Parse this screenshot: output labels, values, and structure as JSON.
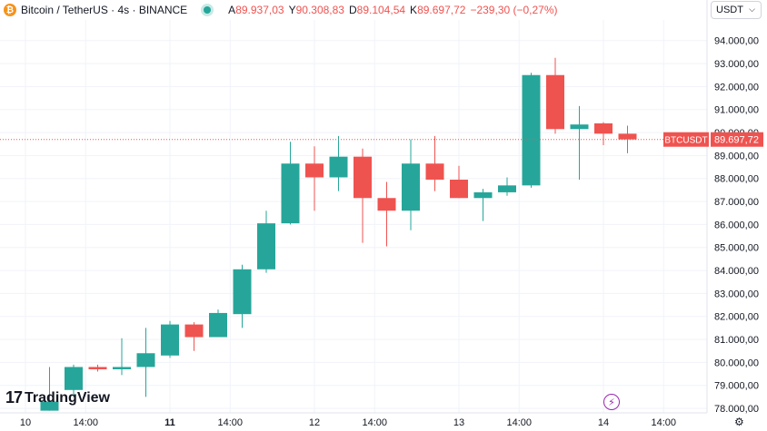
{
  "header": {
    "coin_icon": "bitcoin-icon",
    "symbol": "Bitcoin / TetherUS · 4s · BINANCE",
    "ohlc": [
      {
        "key": "A",
        "value": "89.937,03"
      },
      {
        "key": "Y",
        "value": "90.308,83"
      },
      {
        "key": "D",
        "value": "89.104,54"
      },
      {
        "key": "K",
        "value": "89.697,72"
      }
    ],
    "change": "−239,30 (−0,27%)"
  },
  "currency_select": {
    "value": "USDT"
  },
  "price_tag": {
    "label": "BTCUSDT",
    "value": "89.697,72"
  },
  "logo": {
    "mark": "17",
    "text": "TradingView"
  },
  "colors": {
    "up": "#26a69a",
    "down": "#ef5350",
    "grid": "#f0f3fa",
    "last_line": "#ef5350"
  },
  "chart_data": {
    "type": "candlestick",
    "yaxis_ticks": [
      "94.000,00",
      "93.000,00",
      "92.000,00",
      "91.000,00",
      "90.000,00",
      "89.000,00",
      "88.000,00",
      "87.000,00",
      "86.000,00",
      "85.000,00",
      "84.000,00",
      "83.000,00",
      "82.000,00",
      "81.000,00",
      "80.000,00",
      "79.000,00",
      "78.000,00"
    ],
    "yaxis_values": [
      94000,
      93000,
      92000,
      91000,
      90000,
      89000,
      88000,
      87000,
      86000,
      85000,
      84000,
      83000,
      82000,
      81000,
      80000,
      79000,
      78000
    ],
    "ylim": [
      77900,
      94700
    ],
    "xaxis_ticks": [
      {
        "label": "10",
        "index": -1.0,
        "bold": false
      },
      {
        "label": "14:00",
        "index": 1.5,
        "bold": false
      },
      {
        "label": "11",
        "index": 5.0,
        "bold": true
      },
      {
        "label": "14:00",
        "index": 7.5,
        "bold": false
      },
      {
        "label": "12",
        "index": 11.0,
        "bold": false
      },
      {
        "label": "14:00",
        "index": 13.5,
        "bold": false
      },
      {
        "label": "13",
        "index": 17.0,
        "bold": false
      },
      {
        "label": "14:00",
        "index": 19.5,
        "bold": false
      },
      {
        "label": "14",
        "index": 23.0,
        "bold": false
      },
      {
        "label": "14:00",
        "index": 25.5,
        "bold": false
      }
    ],
    "last_price": 89697.72,
    "candles": [
      {
        "o": 77900,
        "h": 79800,
        "l": 77900,
        "c": 78300
      },
      {
        "o": 78800,
        "h": 79900,
        "l": 78500,
        "c": 79800
      },
      {
        "o": 79800,
        "h": 79900,
        "l": 79600,
        "c": 79700
      },
      {
        "o": 79700,
        "h": 81050,
        "l": 79450,
        "c": 79800
      },
      {
        "o": 79800,
        "h": 81500,
        "l": 78500,
        "c": 80400
      },
      {
        "o": 80300,
        "h": 81800,
        "l": 80200,
        "c": 81650
      },
      {
        "o": 81650,
        "h": 81750,
        "l": 80500,
        "c": 81100
      },
      {
        "o": 81100,
        "h": 82300,
        "l": 81100,
        "c": 82150
      },
      {
        "o": 82100,
        "h": 84250,
        "l": 81500,
        "c": 84050
      },
      {
        "o": 84050,
        "h": 86600,
        "l": 83900,
        "c": 86050
      },
      {
        "o": 86050,
        "h": 89600,
        "l": 86000,
        "c": 88650
      },
      {
        "o": 88650,
        "h": 89400,
        "l": 86600,
        "c": 88050
      },
      {
        "o": 88050,
        "h": 89850,
        "l": 87450,
        "c": 88950
      },
      {
        "o": 88950,
        "h": 89300,
        "l": 85200,
        "c": 87150
      },
      {
        "o": 87150,
        "h": 87850,
        "l": 85050,
        "c": 86600
      },
      {
        "o": 86600,
        "h": 89700,
        "l": 85750,
        "c": 88650
      },
      {
        "o": 88650,
        "h": 89850,
        "l": 87450,
        "c": 87950
      },
      {
        "o": 87950,
        "h": 88550,
        "l": 87150,
        "c": 87150
      },
      {
        "o": 87150,
        "h": 87550,
        "l": 86150,
        "c": 87400
      },
      {
        "o": 87400,
        "h": 88050,
        "l": 87250,
        "c": 87700
      },
      {
        "o": 87700,
        "h": 92600,
        "l": 87600,
        "c": 92500
      },
      {
        "o": 92500,
        "h": 93250,
        "l": 89950,
        "c": 90150
      },
      {
        "o": 90150,
        "h": 91150,
        "l": 87950,
        "c": 90350
      },
      {
        "o": 90400,
        "h": 90450,
        "l": 89450,
        "c": 89950
      },
      {
        "o": 89950,
        "h": 90300,
        "l": 89100,
        "c": 89700
      }
    ]
  }
}
